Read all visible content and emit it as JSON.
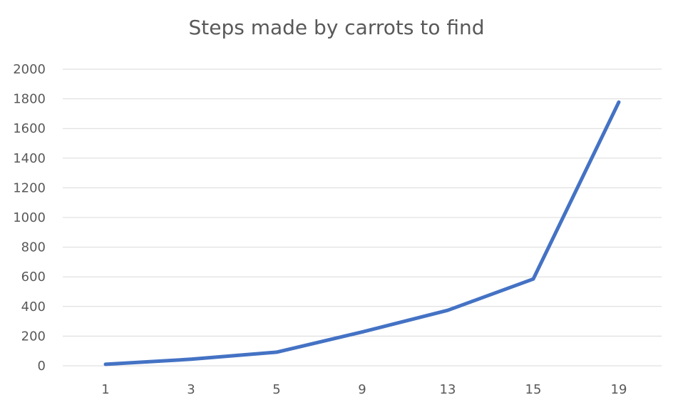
{
  "chart_data": {
    "type": "line",
    "title": "Steps made by carrots to find",
    "xlabel": "",
    "ylabel": "",
    "categories": [
      "1",
      "3",
      "5",
      "9",
      "13",
      "15",
      "19"
    ],
    "series": [
      {
        "values": [
          10,
          44,
          92,
          228,
          374,
          585,
          1778
        ]
      }
    ],
    "ylim": [
      0,
      2000
    ],
    "yticks": [
      0,
      200,
      400,
      600,
      800,
      1000,
      1200,
      1400,
      1600,
      1800,
      2000
    ],
    "grid": true,
    "legend": "none",
    "colors": {
      "line": "#4472C4",
      "grid": "#d9d9d9",
      "text": "#595959"
    }
  }
}
